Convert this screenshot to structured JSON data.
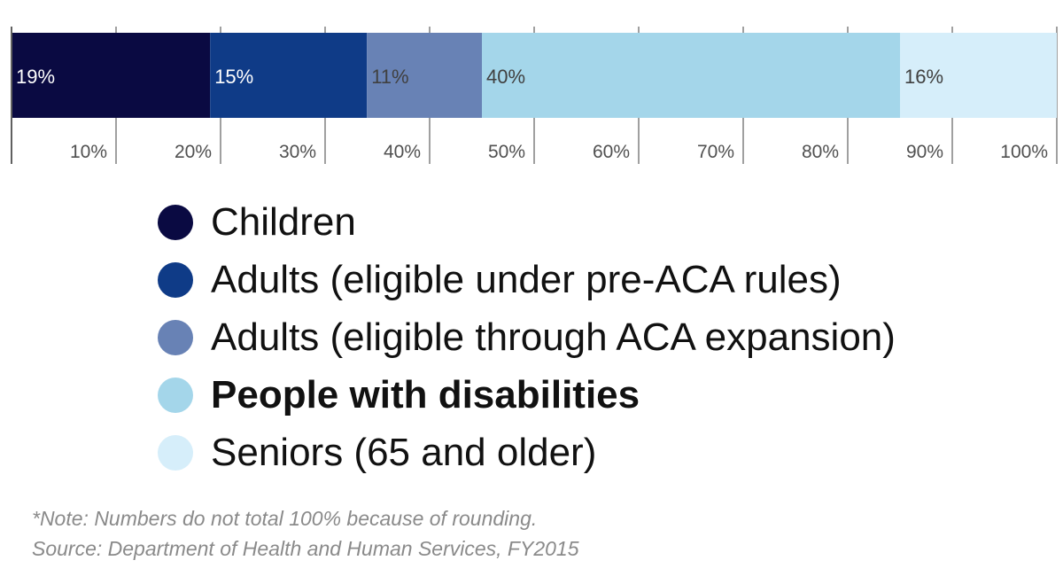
{
  "chart_data": {
    "type": "bar",
    "orientation": "horizontal-stacked",
    "series": [
      {
        "name": "Children",
        "value": 19,
        "label": "19%",
        "color": "#0a0a42",
        "label_color": "#ffffff"
      },
      {
        "name": "Adults (eligible under pre-ACA rules)",
        "value": 15,
        "label": "15%",
        "color": "#0f3b87",
        "label_color": "#ffffff"
      },
      {
        "name": "Adults (eligible through ACA expansion)",
        "value": 11,
        "label": "11%",
        "color": "#6882b5",
        "label_color": "#404040"
      },
      {
        "name": "People with disabilities",
        "value": 40,
        "label": "40%",
        "color": "#a4d6ea",
        "label_color": "#404040",
        "bold": true
      },
      {
        "name": "Seniors (65 and older)",
        "value": 16,
        "label": "16%",
        "color": "#d6eefa",
        "label_color": "#404040"
      }
    ],
    "xlim": [
      0,
      100
    ],
    "xticks": [
      "10%",
      "20%",
      "30%",
      "40%",
      "50%",
      "60%",
      "70%",
      "80%",
      "90%",
      "100%"
    ],
    "grid": true,
    "legend_position": "bottom"
  },
  "notes": {
    "note": "*Note: Numbers do not total 100% because of rounding.",
    "source": "Source: Department of Health and Human Services, FY2015"
  }
}
